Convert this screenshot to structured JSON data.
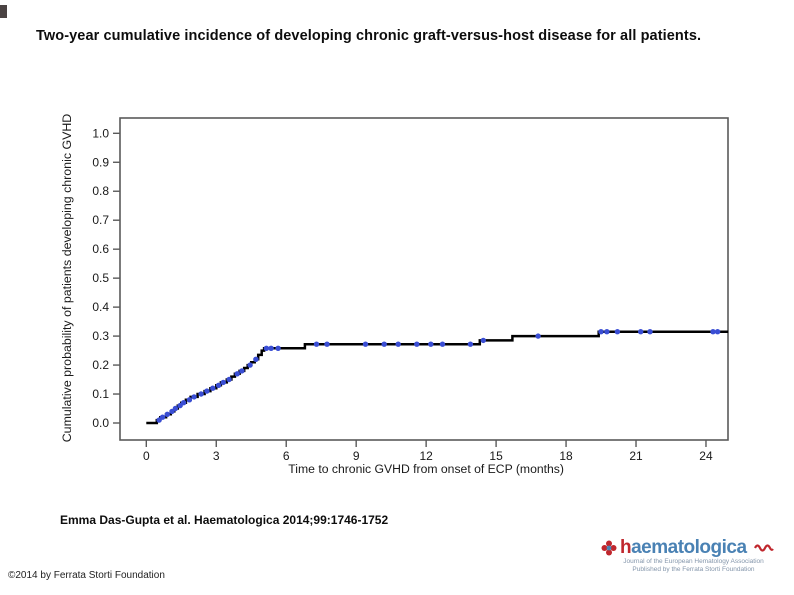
{
  "title": "Two-year cumulative incidence of developing chronic graft-versus-host disease for all patients.",
  "citation": "Emma Das-Gupta et al. Haematologica 2014;99:1746-1752",
  "copyright": "©2014 by Ferrata Storti Foundation",
  "logo": {
    "initial": "h",
    "rest": "aematologica",
    "subtitle1": "Journal of the European Hematology Association",
    "subtitle2": "Published by the Ferrata Storti Foundation",
    "brand_blue": "#4a82b4",
    "brand_red": "#c0272d"
  },
  "chart_data": {
    "type": "line",
    "subtype": "kaplan-meier-cumulative-incidence-step",
    "title": "",
    "xlabel": "Time to chronic GVHD from onset of ECP (months)",
    "ylabel": "Cumulative probability of patients developing chronic GVHD",
    "xlim": [
      0,
      25
    ],
    "ylim": [
      0.0,
      1.0
    ],
    "xticks": [
      0,
      3,
      6,
      9,
      12,
      15,
      18,
      21,
      24
    ],
    "yticks": [
      0.0,
      0.1,
      0.2,
      0.3,
      0.4,
      0.5,
      0.6,
      0.7,
      0.8,
      0.9,
      1.0
    ],
    "grid": false,
    "legend": "none",
    "curve_color": "#000000",
    "censor_color": "#3a4ed4",
    "axis_color": "#5a5a5a",
    "steps": [
      [
        0.0,
        0.0
      ],
      [
        0.45,
        0.01
      ],
      [
        0.6,
        0.02
      ],
      [
        0.85,
        0.03
      ],
      [
        1.05,
        0.04
      ],
      [
        1.2,
        0.05
      ],
      [
        1.35,
        0.06
      ],
      [
        1.5,
        0.07
      ],
      [
        1.7,
        0.08
      ],
      [
        1.9,
        0.09
      ],
      [
        2.2,
        0.1
      ],
      [
        2.5,
        0.11
      ],
      [
        2.75,
        0.12
      ],
      [
        3.0,
        0.13
      ],
      [
        3.2,
        0.14
      ],
      [
        3.45,
        0.15
      ],
      [
        3.65,
        0.16
      ],
      [
        3.8,
        0.17
      ],
      [
        4.0,
        0.18
      ],
      [
        4.2,
        0.19
      ],
      [
        4.35,
        0.2
      ],
      [
        4.5,
        0.21
      ],
      [
        4.65,
        0.22
      ],
      [
        4.8,
        0.235
      ],
      [
        4.95,
        0.25
      ],
      [
        5.05,
        0.258
      ],
      [
        6.8,
        0.272
      ],
      [
        14.3,
        0.285
      ],
      [
        15.7,
        0.3
      ],
      [
        19.4,
        0.315
      ]
    ],
    "end_time": 24.95,
    "censors": [
      [
        0.55,
        0.01
      ],
      [
        0.7,
        0.02
      ],
      [
        0.9,
        0.03
      ],
      [
        1.1,
        0.04
      ],
      [
        1.25,
        0.05
      ],
      [
        1.45,
        0.06
      ],
      [
        1.6,
        0.07
      ],
      [
        1.85,
        0.08
      ],
      [
        2.05,
        0.09
      ],
      [
        2.35,
        0.1
      ],
      [
        2.6,
        0.11
      ],
      [
        2.85,
        0.12
      ],
      [
        3.1,
        0.13
      ],
      [
        3.3,
        0.14
      ],
      [
        3.55,
        0.15
      ],
      [
        3.9,
        0.17
      ],
      [
        4.1,
        0.18
      ],
      [
        4.45,
        0.2
      ],
      [
        4.7,
        0.22
      ],
      [
        5.15,
        0.258
      ],
      [
        5.35,
        0.258
      ],
      [
        5.65,
        0.258
      ],
      [
        7.3,
        0.272
      ],
      [
        7.75,
        0.272
      ],
      [
        9.4,
        0.272
      ],
      [
        10.2,
        0.272
      ],
      [
        10.8,
        0.272
      ],
      [
        11.6,
        0.272
      ],
      [
        12.2,
        0.272
      ],
      [
        12.7,
        0.272
      ],
      [
        13.9,
        0.272
      ],
      [
        14.45,
        0.285
      ],
      [
        16.8,
        0.3
      ],
      [
        19.5,
        0.315
      ],
      [
        19.75,
        0.315
      ],
      [
        20.2,
        0.315
      ],
      [
        21.2,
        0.315
      ],
      [
        21.6,
        0.315
      ],
      [
        24.3,
        0.315
      ],
      [
        24.5,
        0.315
      ]
    ]
  }
}
